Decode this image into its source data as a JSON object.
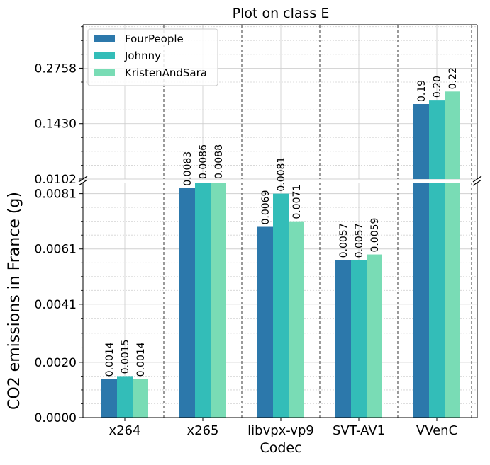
{
  "chart_data": {
    "type": "bar",
    "title": "Plot on class E",
    "xlabel": "Codec",
    "ylabel": "CO2 emissions in France (g)",
    "categories": [
      "x264",
      "x265",
      "libvpx-vp9",
      "SVT-AV1",
      "VVenC"
    ],
    "series": [
      {
        "name": "FourPeople",
        "color": "#2c78ab",
        "values": [
          0.0014,
          0.0083,
          0.0069,
          0.0057,
          0.19
        ],
        "labels": [
          "0.0014",
          "0.0083",
          "0.0069",
          "0.0057",
          "0.19"
        ]
      },
      {
        "name": "Johnny",
        "color": "#33bdb8",
        "values": [
          0.0015,
          0.0086,
          0.0081,
          0.0057,
          0.2
        ],
        "labels": [
          "0.0015",
          "0.0086",
          "0.0081",
          "0.0057",
          "0.20"
        ]
      },
      {
        "name": "KristenAndSara",
        "color": "#79dcb5",
        "values": [
          0.0014,
          0.0088,
          0.0071,
          0.0059,
          0.22
        ],
        "labels": [
          "0.0014",
          "0.0088",
          "0.0071",
          "0.0059",
          "0.22"
        ]
      }
    ],
    "broken_axis": true,
    "lower_axis": {
      "ylim": [
        0,
        0.0085
      ],
      "ticks": [
        0,
        0.002,
        0.0041,
        0.0061,
        0.0081
      ],
      "tick_labels": [
        "0.0000",
        "0.0020",
        "0.0041",
        "0.0061",
        "0.0081"
      ]
    },
    "upper_axis": {
      "ylim": [
        0.0102,
        0.38
      ],
      "ticks": [
        0.0102,
        0.143,
        0.2758
      ],
      "tick_labels": [
        "0.0102",
        "0.1430",
        "0.2758"
      ]
    },
    "grid": true,
    "legend_position": "top-left"
  }
}
